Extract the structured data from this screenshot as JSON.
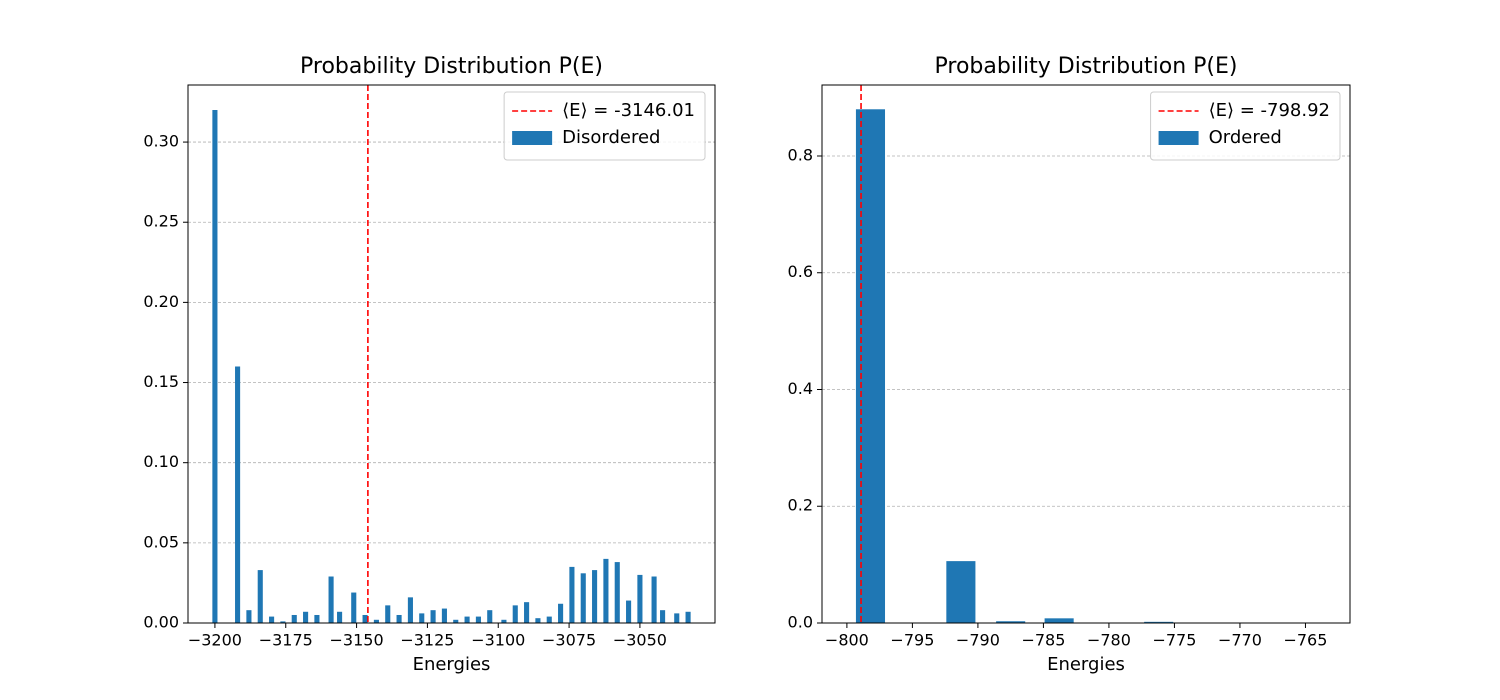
{
  "chart_data": [
    {
      "type": "bar",
      "title": "Probability Distribution P(E)",
      "xlabel": "Energies",
      "x": [
        -3200,
        -3192,
        -3188,
        -3184,
        -3180,
        -3176,
        -3172,
        -3168,
        -3164,
        -3159,
        -3156,
        -3151,
        -3147,
        -3143,
        -3139,
        -3135,
        -3131,
        -3127,
        -3123,
        -3119,
        -3115,
        -3111,
        -3107,
        -3103,
        -3098,
        -3094,
        -3090,
        -3086,
        -3082,
        -3078,
        -3074,
        -3070,
        -3066,
        -3062,
        -3058,
        -3054,
        -3050,
        -3045,
        -3042,
        -3037,
        -3033
      ],
      "series": [
        {
          "name": "Disordered",
          "color": "#1f77b4",
          "values": [
            0.32,
            0.16,
            0.008,
            0.033,
            0.004,
            0.001,
            0.005,
            0.007,
            0.005,
            0.029,
            0.007,
            0.019,
            0.005,
            0.002,
            0.011,
            0.005,
            0.016,
            0.006,
            0.008,
            0.009,
            0.002,
            0.004,
            0.004,
            0.008,
            0.002,
            0.011,
            0.013,
            0.003,
            0.004,
            0.012,
            0.035,
            0.031,
            0.033,
            0.04,
            0.038,
            0.014,
            0.03,
            0.029,
            0.008,
            0.006,
            0.007
          ]
        }
      ],
      "vline": {
        "name": "⟨E⟩ = -3146.01",
        "value": -3146.01,
        "color": "#ff0000"
      },
      "xlim": [
        -3209.5,
        -3023.5
      ],
      "ylim": [
        0,
        0.3356
      ],
      "xticks": [
        {
          "value": -3200,
          "label": "−3200"
        },
        {
          "value": -3175,
          "label": "−3175"
        },
        {
          "value": -3150,
          "label": "−3150"
        },
        {
          "value": -3125,
          "label": "−3125"
        },
        {
          "value": -3100,
          "label": "−3100"
        },
        {
          "value": -3075,
          "label": "−3075"
        },
        {
          "value": -3050,
          "label": "−3050"
        }
      ],
      "yticks": [
        {
          "value": 0,
          "label": "0.00"
        },
        {
          "value": 0.05,
          "label": "0.05"
        },
        {
          "value": 0.1,
          "label": "0.10"
        },
        {
          "value": 0.15,
          "label": "0.15"
        },
        {
          "value": 0.2,
          "label": "0.20"
        },
        {
          "value": 0.25,
          "label": "0.25"
        },
        {
          "value": 0.3,
          "label": "0.30"
        }
      ],
      "grid": true,
      "legend": "upper right"
    },
    {
      "type": "bar",
      "title": "Probability Distribution P(E)",
      "xlabel": "Energies",
      "x": [
        -798.2,
        -791.3,
        -787.5,
        -783.8,
        -776.2
      ],
      "series": [
        {
          "name": "Ordered",
          "color": "#1f77b4",
          "values": [
            0.88,
            0.106,
            0.003,
            0.008,
            0.002
          ]
        }
      ],
      "vline": {
        "name": "⟨E⟩ = -798.92",
        "value": -798.92,
        "color": "#ff0000"
      },
      "xlim": [
        -801.9,
        -761.6
      ],
      "ylim": [
        0,
        0.9216
      ],
      "xticks": [
        {
          "value": -800,
          "label": "−800"
        },
        {
          "value": -795,
          "label": "−795"
        },
        {
          "value": -790,
          "label": "−790"
        },
        {
          "value": -785,
          "label": "−785"
        },
        {
          "value": -780,
          "label": "−780"
        },
        {
          "value": -775,
          "label": "−775"
        },
        {
          "value": -770,
          "label": "−770"
        },
        {
          "value": -765,
          "label": "−765"
        }
      ],
      "yticks": [
        {
          "value": 0,
          "label": "0.0"
        },
        {
          "value": 0.2,
          "label": "0.2"
        },
        {
          "value": 0.4,
          "label": "0.4"
        },
        {
          "value": 0.6,
          "label": "0.6"
        },
        {
          "value": 0.8,
          "label": "0.8"
        }
      ],
      "grid": true,
      "legend": "upper right"
    }
  ]
}
